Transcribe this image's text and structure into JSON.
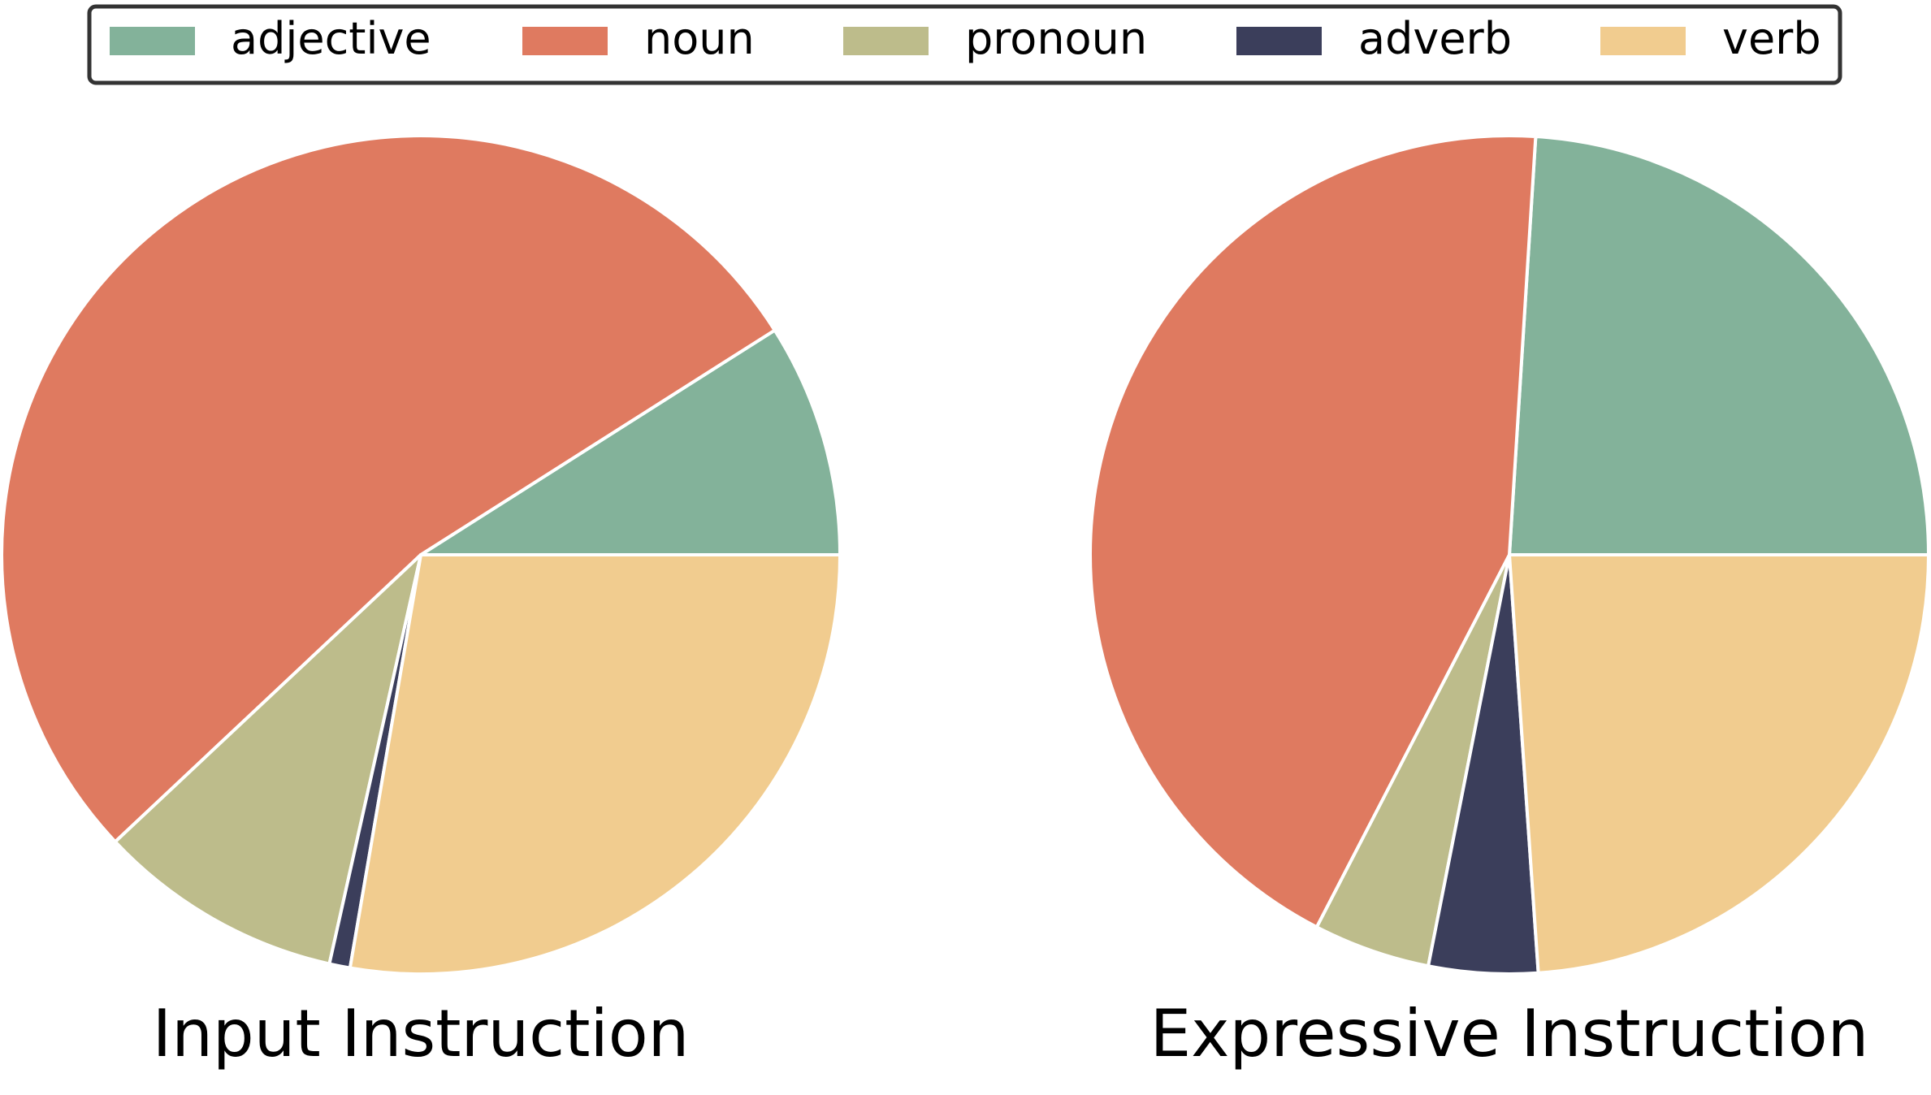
{
  "chart_data": {
    "type": "pie",
    "legend": {
      "placement": "top",
      "entries": [
        {
          "label": "adjective",
          "color": "#83b29a"
        },
        {
          "label": "noun",
          "color": "#df7a60"
        },
        {
          "label": "pronoun",
          "color": "#bdbc8b"
        },
        {
          "label": "adverb",
          "color": "#3b3e5b"
        },
        {
          "label": "verb",
          "color": "#f1cc8f"
        }
      ]
    },
    "charts": [
      {
        "title": "Input Instruction",
        "categories": [
          "adjective",
          "noun",
          "pronoun",
          "adverb",
          "verb"
        ],
        "values": [
          9.0,
          53.0,
          9.5,
          0.8,
          27.7
        ]
      },
      {
        "title": "Expressive Instruction",
        "categories": [
          "adjective",
          "noun",
          "pronoun",
          "adverb",
          "verb"
        ],
        "values": [
          24.0,
          43.4,
          4.5,
          4.2,
          23.9
        ]
      }
    ]
  }
}
